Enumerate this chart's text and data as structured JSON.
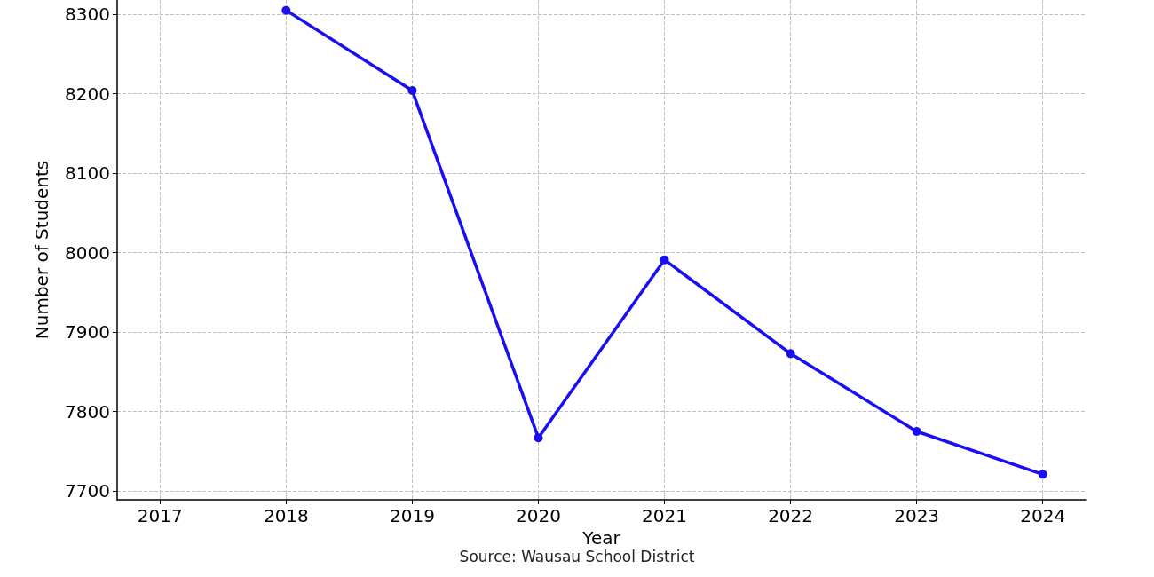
{
  "chart_data": {
    "type": "line",
    "xlabel": "Year",
    "ylabel": "Number of Students",
    "annotations": [
      "Source: Wausau School District"
    ],
    "x": [
      2018,
      2019,
      2020,
      2021,
      2022,
      2023,
      2024
    ],
    "series": [
      {
        "color": "#1a0ff0",
        "values": [
          8305,
          8204,
          7767,
          7991,
          7873,
          7775,
          7721
        ]
      }
    ],
    "xlim": [
      2016.66,
      2024.34
    ],
    "xticks": [
      2017,
      2018,
      2019,
      2020,
      2021,
      2022,
      2023,
      2024
    ],
    "ylim": [
      7689,
      8318
    ],
    "yticks": [
      7700,
      7800,
      7900,
      8000,
      8100,
      8200,
      8300
    ],
    "grid": true,
    "marker": "circle",
    "line_style": "solid"
  }
}
